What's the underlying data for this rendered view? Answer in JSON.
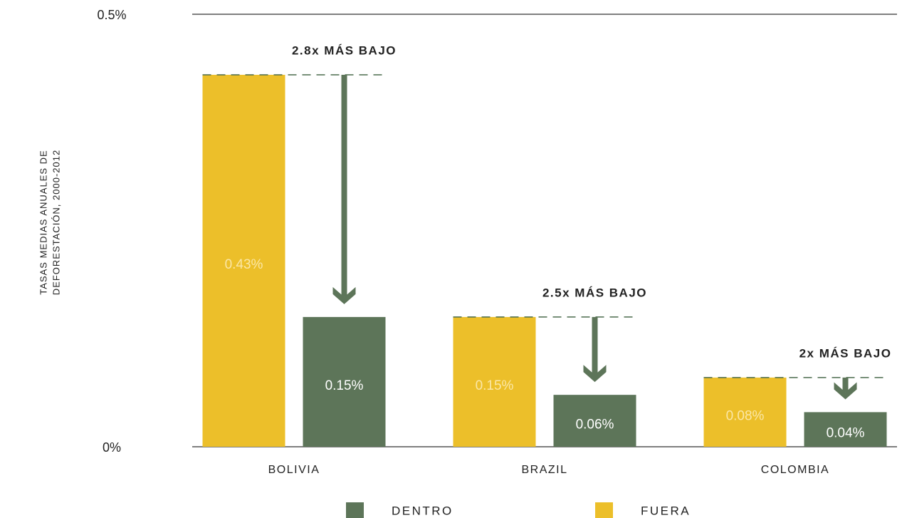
{
  "chart_data": {
    "type": "bar",
    "ylabel": [
      "TASAS MEDIAS ANUALES DE",
      "DEFORESTACIÓN, 2000-2012"
    ],
    "categories": [
      "BOLIVIA",
      "BRAZIL",
      "COLOMBIA"
    ],
    "series": [
      {
        "name": "DENTRO",
        "color": "#5d7559",
        "values": [
          0.15,
          0.06,
          0.04
        ],
        "value_labels": [
          "0.15%",
          "0.06%",
          "0.04%"
        ]
      },
      {
        "name": "FUERA",
        "color": "#ecbf2a",
        "values": [
          0.43,
          0.15,
          0.08
        ],
        "value_labels": [
          "0.43%",
          "0.15%",
          "0.08%"
        ]
      }
    ],
    "annotations": [
      "2.8x MÁS BAJO",
      "2.5x MÁS BAJO",
      "2x MÁS BAJO"
    ],
    "ylim": [
      0,
      0.5
    ],
    "yticks": [
      {
        "value": 0,
        "label": "0%"
      },
      {
        "value": 0.5,
        "label": "0.5%"
      }
    ],
    "grid": true
  }
}
